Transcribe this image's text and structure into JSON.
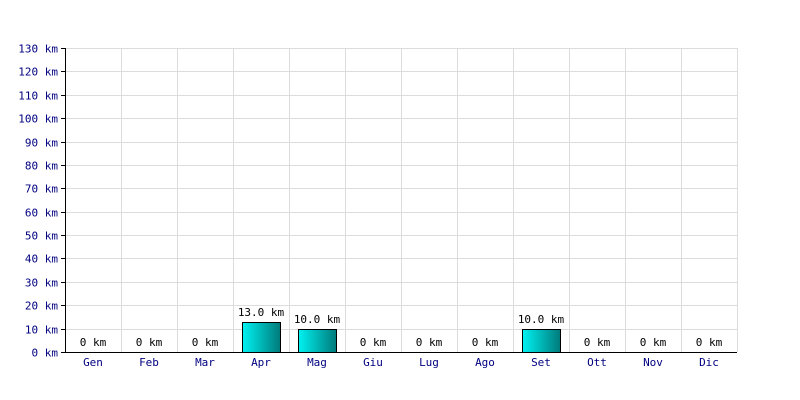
{
  "chart_data": {
    "type": "bar",
    "categories": [
      "Gen",
      "Feb",
      "Mar",
      "Apr",
      "Mag",
      "Giu",
      "Lug",
      "Ago",
      "Set",
      "Ott",
      "Nov",
      "Dic"
    ],
    "values": [
      0,
      0,
      0,
      13.0,
      10.0,
      0,
      0,
      0,
      10.0,
      0,
      0,
      0
    ],
    "data_labels": [
      "0 km",
      "0 km",
      "0 km",
      "13.0 km",
      "10.0 km",
      "0 km",
      "0 km",
      "0 km",
      "10.0 km",
      "0 km",
      "0 km",
      "0 km"
    ],
    "title": "",
    "xlabel": "",
    "ylabel": "",
    "ylim": [
      0,
      130
    ],
    "yticks": [
      0,
      10,
      20,
      30,
      40,
      50,
      60,
      70,
      80,
      90,
      100,
      110,
      120,
      130
    ],
    "ytick_labels": [
      "0 km",
      "10 km",
      "20 km",
      "30 km",
      "40 km",
      "50 km",
      "60 km",
      "70 km",
      "80 km",
      "90 km",
      "100 km",
      "110 km",
      "120 km",
      "130 km"
    ],
    "grid": true,
    "legend": "none"
  },
  "colors": {
    "bar_gradient_start": "#00f2f2",
    "bar_gradient_end": "#007a7a",
    "bar_stroke": "#000000",
    "grid": "#dcdcdc",
    "axis": "#000000",
    "tick_text": "#000080"
  }
}
